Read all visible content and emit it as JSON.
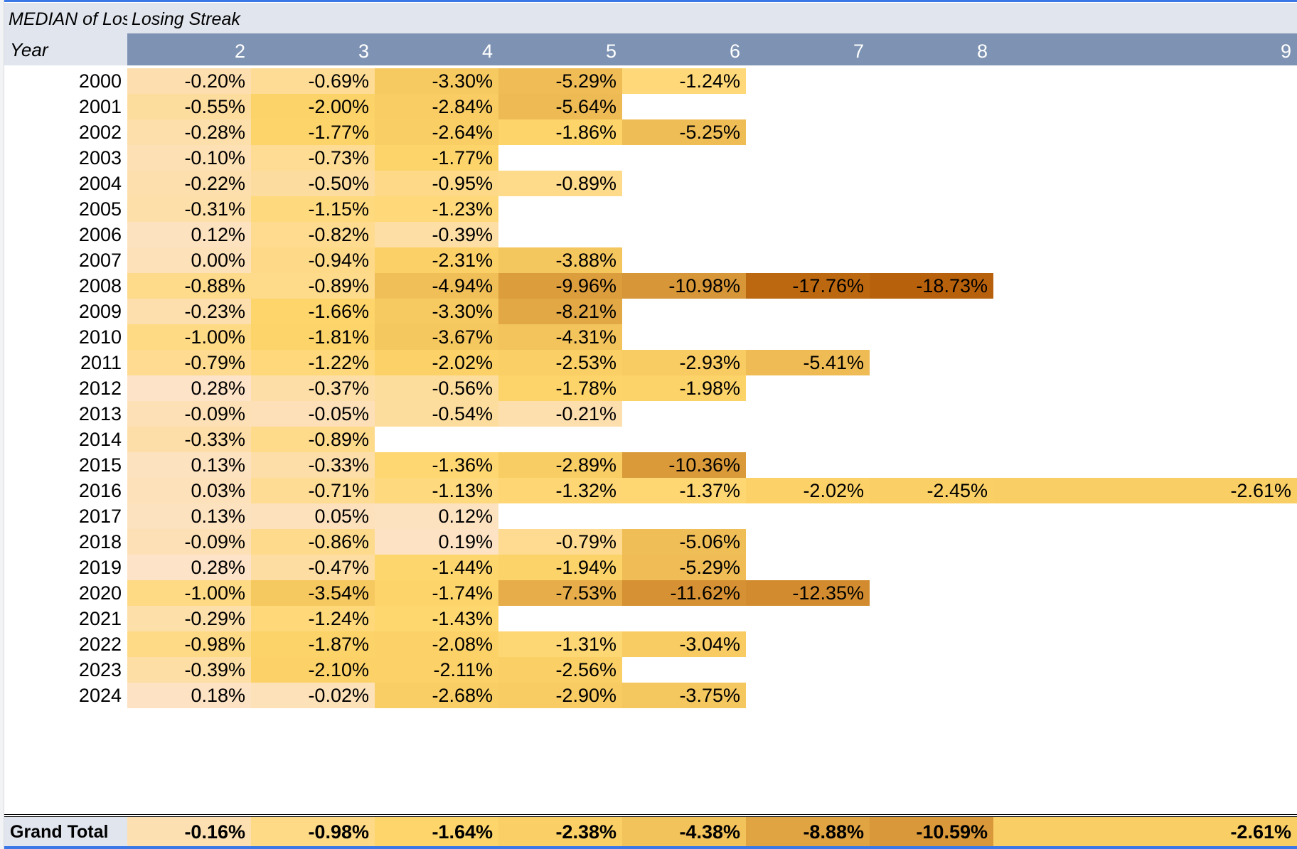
{
  "pivot": {
    "title_cells": [
      "MEDIAN of Losi",
      "Losing Streak"
    ],
    "row_header": "Year",
    "columns": [
      "2",
      "3",
      "4",
      "5",
      "6",
      "7",
      "8",
      "9"
    ],
    "rows": [
      {
        "year": "2000",
        "values": [
          "-0.20%",
          "-0.69%",
          "-3.30%",
          "-5.29%",
          "-1.24%",
          "",
          "",
          ""
        ]
      },
      {
        "year": "2001",
        "values": [
          "-0.55%",
          "-2.00%",
          "-2.84%",
          "-5.64%",
          "",
          "",
          "",
          ""
        ]
      },
      {
        "year": "2002",
        "values": [
          "-0.28%",
          "-1.77%",
          "-2.64%",
          "-1.86%",
          "-5.25%",
          "",
          "",
          ""
        ]
      },
      {
        "year": "2003",
        "values": [
          "-0.10%",
          "-0.73%",
          "-1.77%",
          "",
          "",
          "",
          "",
          ""
        ]
      },
      {
        "year": "2004",
        "values": [
          "-0.22%",
          "-0.50%",
          "-0.95%",
          "-0.89%",
          "",
          "",
          "",
          ""
        ]
      },
      {
        "year": "2005",
        "values": [
          "-0.31%",
          "-1.15%",
          "-1.23%",
          "",
          "",
          "",
          "",
          ""
        ]
      },
      {
        "year": "2006",
        "values": [
          "0.12%",
          "-0.82%",
          "-0.39%",
          "",
          "",
          "",
          "",
          ""
        ]
      },
      {
        "year": "2007",
        "values": [
          "0.00%",
          "-0.94%",
          "-2.31%",
          "-3.88%",
          "",
          "",
          "",
          ""
        ]
      },
      {
        "year": "2008",
        "values": [
          "-0.88%",
          "-0.89%",
          "-4.94%",
          "-9.96%",
          "-10.98%",
          "-17.76%",
          "-18.73%",
          ""
        ]
      },
      {
        "year": "2009",
        "values": [
          "-0.23%",
          "-1.66%",
          "-3.30%",
          "-8.21%",
          "",
          "",
          "",
          ""
        ]
      },
      {
        "year": "2010",
        "values": [
          "-1.00%",
          "-1.81%",
          "-3.67%",
          "-4.31%",
          "",
          "",
          "",
          ""
        ]
      },
      {
        "year": "2011",
        "values": [
          "-0.79%",
          "-1.22%",
          "-2.02%",
          "-2.53%",
          "-2.93%",
          "-5.41%",
          "",
          ""
        ]
      },
      {
        "year": "2012",
        "values": [
          "0.28%",
          "-0.37%",
          "-0.56%",
          "-1.78%",
          "-1.98%",
          "",
          "",
          ""
        ]
      },
      {
        "year": "2013",
        "values": [
          "-0.09%",
          "-0.05%",
          "-0.54%",
          "-0.21%",
          "",
          "",
          "",
          ""
        ]
      },
      {
        "year": "2014",
        "values": [
          "-0.33%",
          "-0.89%",
          "",
          "",
          "",
          "",
          "",
          ""
        ]
      },
      {
        "year": "2015",
        "values": [
          "0.13%",
          "-0.33%",
          "-1.36%",
          "-2.89%",
          "-10.36%",
          "",
          "",
          ""
        ]
      },
      {
        "year": "2016",
        "values": [
          "0.03%",
          "-0.71%",
          "-1.13%",
          "-1.32%",
          "-1.37%",
          "-2.02%",
          "-2.45%",
          "-2.61%"
        ]
      },
      {
        "year": "2017",
        "values": [
          "0.13%",
          "0.05%",
          "0.12%",
          "",
          "",
          "",
          "",
          ""
        ]
      },
      {
        "year": "2018",
        "values": [
          "-0.09%",
          "-0.86%",
          "0.19%",
          "-0.79%",
          "-5.06%",
          "",
          "",
          ""
        ]
      },
      {
        "year": "2019",
        "values": [
          "0.28%",
          "-0.47%",
          "-1.44%",
          "-1.94%",
          "-5.29%",
          "",
          "",
          ""
        ]
      },
      {
        "year": "2020",
        "values": [
          "-1.00%",
          "-3.54%",
          "-1.74%",
          "-7.53%",
          "-11.62%",
          "-12.35%",
          "",
          ""
        ]
      },
      {
        "year": "2021",
        "values": [
          "-0.29%",
          "-1.24%",
          "-1.43%",
          "",
          "",
          "",
          "",
          ""
        ]
      },
      {
        "year": "2022",
        "values": [
          "-0.98%",
          "-1.87%",
          "-2.08%",
          "-1.31%",
          "-3.04%",
          "",
          "",
          ""
        ]
      },
      {
        "year": "2023",
        "values": [
          "-0.39%",
          "-2.10%",
          "-2.11%",
          "-2.56%",
          "",
          "",
          "",
          ""
        ]
      },
      {
        "year": "2024",
        "values": [
          "0.18%",
          "-0.02%",
          "-2.68%",
          "-2.90%",
          "-3.75%",
          "",
          "",
          ""
        ]
      }
    ],
    "grand_total": {
      "label": "Grand Total",
      "values": [
        "-0.16%",
        "-0.98%",
        "-1.64%",
        "-2.38%",
        "-4.38%",
        "-8.88%",
        "-10.59%",
        "-2.61%"
      ]
    }
  },
  "colors": {
    "header_band": "#7e93b3",
    "title_band": "#e1e5ee",
    "selection_border": "#3b78e7",
    "scale_low": "#fde3c9",
    "scale_mid": "#fed66b",
    "scale_high": "#b8610c"
  }
}
